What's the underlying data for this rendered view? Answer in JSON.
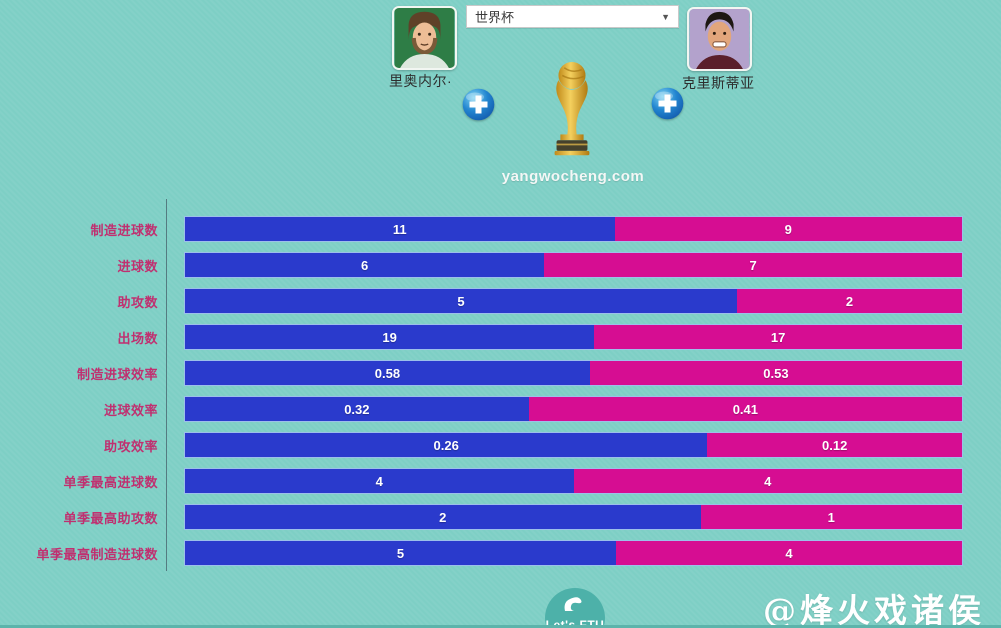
{
  "colors": {
    "background": "#7ecfc5",
    "left_bar": "#2a3acc",
    "right_bar": "#d60d92",
    "category_label": "#c03070",
    "bar_value_text": "#ffffff",
    "logo_circle": "#4db1a9"
  },
  "header": {
    "left_player": {
      "name": "里奥内尔·",
      "avatar": "messi-avatar",
      "add_icon": "plus-icon"
    },
    "right_player": {
      "name": "克里斯蒂亚",
      "avatar": "ronaldo-avatar",
      "add_icon": "plus-icon"
    },
    "competition_dropdown": {
      "selected": "世界杯",
      "arrow": "▼"
    },
    "trophy_icon": "world-cup-trophy",
    "site_watermark": "yangwocheng.com"
  },
  "chart_data": {
    "type": "bar",
    "subtype": "horizontal-paired-comparison-stacked",
    "categories": [
      "制造进球数",
      "进球数",
      "助攻数",
      "出场数",
      "制造进球效率",
      "进球效率",
      "助攻效率",
      "单季最高进球数",
      "单季最高助攻数",
      "单季最高制造进球数"
    ],
    "series": [
      {
        "name": "里奥内尔",
        "color": "#2a3acc",
        "values": [
          11,
          6,
          5,
          19,
          0.58,
          0.32,
          0.26,
          4,
          2,
          5
        ]
      },
      {
        "name": "克里斯蒂亚",
        "color": "#d60d92",
        "values": [
          9,
          7,
          2,
          17,
          0.53,
          0.41,
          0.12,
          4,
          1,
          4
        ]
      }
    ],
    "value_labels_shown": true,
    "bar_split_rule": "left/(left+right) proportional width",
    "grid": false,
    "legend": "avatars at top"
  },
  "footer": {
    "logo_text": "Let's FTU",
    "author_watermark": "@烽火戏诸侯"
  }
}
